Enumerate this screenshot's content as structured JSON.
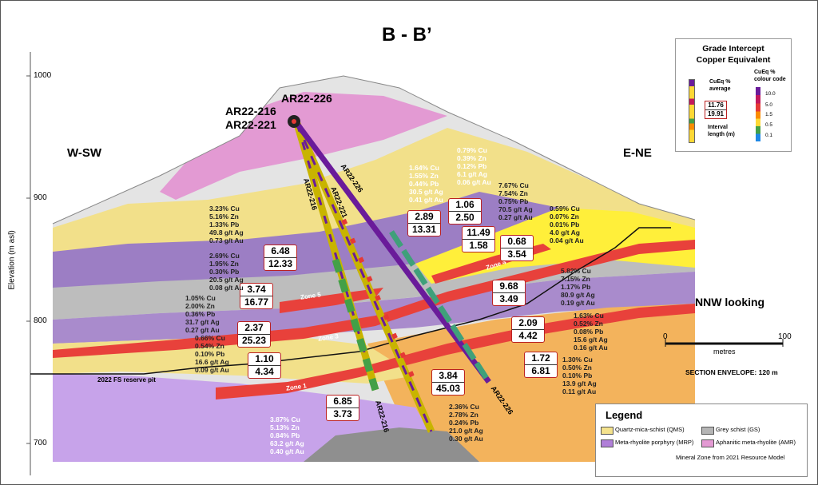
{
  "title": "B - B’",
  "directions": {
    "left": "W-SW",
    "right": "E-NE"
  },
  "looking": "NNW looking",
  "axis": {
    "label": "Elevation (m asl)",
    "ticks": [
      "1000",
      "900",
      "800",
      "700"
    ]
  },
  "drillholes": {
    "collar_labels": [
      "AR22-226",
      "AR22-216",
      "AR22-221"
    ],
    "trace_labels": [
      "AR22-216",
      "AR22-221",
      "AR22-226",
      "AR22-216",
      "AR22-226"
    ]
  },
  "zones": [
    "Zone 5",
    "Zone 4",
    "Zone 3",
    "Zone 1"
  ],
  "pit_label": "2022 FS reserve pit",
  "intercepts": [
    {
      "avg": "6.48",
      "len": "12.33"
    },
    {
      "avg": "3.74",
      "len": "16.77"
    },
    {
      "avg": "2.37",
      "len": "25.23"
    },
    {
      "avg": "1.10",
      "len": "4.34"
    },
    {
      "avg": "6.85",
      "len": "3.73"
    },
    {
      "avg": "3.84",
      "len": "45.03"
    },
    {
      "avg": "2.89",
      "len": "13.31"
    },
    {
      "avg": "1.06",
      "len": "2.50"
    },
    {
      "avg": "11.49",
      "len": "1.58"
    },
    {
      "avg": "0.68",
      "len": "3.54"
    },
    {
      "avg": "9.68",
      "len": "3.49"
    },
    {
      "avg": "2.09",
      "len": "4.42"
    },
    {
      "avg": "1.72",
      "len": "6.81"
    }
  ],
  "assays": [
    [
      "3.23% Cu",
      "5.16% Zn",
      "1.33% Pb",
      "49.8 g/t Ag",
      "0.73 g/t Au"
    ],
    [
      "2.69% Cu",
      "1.95% Zn",
      "0.30% Pb",
      "20.5 g/t Ag",
      "0.08 g/t Au"
    ],
    [
      "1.05% Cu",
      "2.00% Zn",
      "0.36% Pb",
      "31.7 g/t Ag",
      "0.27 g/t Au"
    ],
    [
      "0.66% Cu",
      "0.54% Zn",
      "0.10% Pb",
      "16.6 g/t Ag",
      "0.09 g/t Au"
    ],
    [
      "3.87% Cu",
      "5.13% Zn",
      "0.84% Pb",
      "63.2 g/t Ag",
      "0.40 g/t Au"
    ],
    [
      "2.36% Cu",
      "2.78% Zn",
      "0.24% Pb",
      "21.0 g/t Ag",
      "0.30 g/t Au"
    ],
    [
      "1.64% Cu",
      "1.55% Zn",
      "0.44% Pb",
      "30.5 g/t Ag",
      "0.41 g/t Au"
    ],
    [
      "0.79% Cu",
      "0.39% Zn",
      "0.12% Pb",
      "6.1 g/t Ag",
      "0.06 g/t Au"
    ],
    [
      "7.67% Cu",
      "7.54% Zn",
      "0.75% Pb",
      "70.5 g/t Ag",
      "0.27 g/t Au"
    ],
    [
      "0.59% Cu",
      "0.07% Zn",
      "0.01% Pb",
      "4.0 g/t Ag",
      "0.04 g/t Au"
    ],
    [
      "5.82% Cu",
      "7.15% Zn",
      "1.17% Pb",
      "80.9 g/t Ag",
      "0.19 g/t Au"
    ],
    [
      "1.63% Cu",
      "0.52% Zn",
      "0.08% Pb",
      "15.6 g/t Ag",
      "0.16 g/t Au"
    ],
    [
      "1.30% Cu",
      "0.50% Zn",
      "0.10% Pb",
      "13.9 g/t Ag",
      "0.11 g/t Au"
    ]
  ],
  "grade_box": {
    "title1": "Grade Intercept",
    "title2": "Copper Equivalent",
    "code_title1": "CuEq %",
    "code_title2": "colour code",
    "avg_label1": "CuEq %",
    "avg_label2": "average",
    "example_avg": "11.76",
    "example_len": "19.91",
    "len_label1": "Interval",
    "len_label2": "length (m)",
    "scale": [
      "10.0",
      "5.0",
      "1.5",
      "0.5",
      "0.1"
    ],
    "colors": [
      "#6a1b9a",
      "#c2185b",
      "#e53935",
      "#fb8c00",
      "#fdd835",
      "#43a047",
      "#1e88e5"
    ]
  },
  "scale_bar": {
    "start": "0",
    "end": "100",
    "unit": "metres",
    "envelope": "SECTION ENVELOPE: 120 m"
  },
  "legend": {
    "title": "Legend",
    "items": [
      {
        "label": "Quartz-mica-schist (QMS)",
        "color": "#f4e28c"
      },
      {
        "label": "Grey schist (GS)",
        "color": "#b5b5b5"
      },
      {
        "label": "Meta-rhyolite porphyry (MRP)",
        "color": "#b07fd8"
      },
      {
        "label": "Aphanitic meta-rhyolite (AMR)",
        "color": "#e39ad3"
      }
    ],
    "zone_label": "Mineral Zone from 2021 Resource Model"
  }
}
